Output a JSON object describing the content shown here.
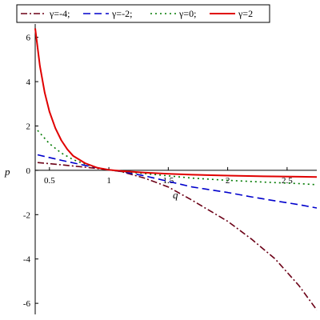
{
  "chart_data": {
    "type": "line",
    "xlabel": "q",
    "ylabel": "p",
    "xlim": [
      0.38,
      2.75
    ],
    "ylim": [
      -6.5,
      6.6
    ],
    "x_ticks": [
      0.5,
      1,
      1.5,
      2,
      2.5
    ],
    "x_tick_labels": [
      "0.5",
      "1",
      "1.5",
      "2",
      "2.5"
    ],
    "y_ticks": [
      -6,
      -4,
      -2,
      0,
      2,
      4,
      6
    ],
    "y_tick_labels": [
      "-6",
      "-4",
      "-2",
      "0",
      "2",
      "4",
      "6"
    ],
    "grid": false,
    "legend_position": "top",
    "series": [
      {
        "name": "γ=-4;",
        "color": "#6b0016",
        "dash": "dashdot",
        "x": [
          0.4,
          0.6,
          0.8,
          1.0,
          1.1,
          1.3,
          1.5,
          1.7,
          2.0,
          2.2,
          2.4,
          2.6,
          2.75
        ],
        "y": [
          0.35,
          0.25,
          0.14,
          0.02,
          -0.05,
          -0.35,
          -0.75,
          -1.35,
          -2.3,
          -3.1,
          -4.0,
          -5.2,
          -6.3
        ]
      },
      {
        "name": "γ=-2;",
        "color": "#0000cc",
        "dash": "dash",
        "x": [
          0.4,
          0.6,
          0.8,
          1.0,
          1.1,
          1.3,
          1.5,
          1.7,
          2.0,
          2.2,
          2.4,
          2.6,
          2.75
        ],
        "y": [
          0.7,
          0.45,
          0.22,
          0.02,
          -0.05,
          -0.25,
          -0.5,
          -0.75,
          -1.0,
          -1.2,
          -1.38,
          -1.55,
          -1.7
        ]
      },
      {
        "name": "γ=0;",
        "color": "#007a00",
        "dash": "dot",
        "x": [
          0.4,
          0.5,
          0.6,
          0.7,
          0.8,
          0.9,
          1.0,
          1.1,
          1.3,
          1.5,
          1.7,
          2.0,
          2.3,
          2.6,
          2.75
        ],
        "y": [
          1.8,
          1.2,
          0.78,
          0.48,
          0.28,
          0.12,
          0.02,
          -0.05,
          -0.15,
          -0.25,
          -0.35,
          -0.45,
          -0.53,
          -0.6,
          -0.65
        ]
      },
      {
        "name": "γ=2",
        "color": "#e00000",
        "dash": "solid",
        "x": [
          0.38,
          0.42,
          0.46,
          0.5,
          0.55,
          0.6,
          0.65,
          0.7,
          0.8,
          0.9,
          1.0,
          1.1,
          1.3,
          1.5,
          1.7,
          2.0,
          2.3,
          2.6,
          2.75
        ],
        "y": [
          6.4,
          4.7,
          3.5,
          2.65,
          1.9,
          1.35,
          0.95,
          0.65,
          0.32,
          0.12,
          0.02,
          -0.03,
          -0.1,
          -0.16,
          -0.2,
          -0.24,
          -0.27,
          -0.29,
          -0.3
        ]
      }
    ]
  }
}
